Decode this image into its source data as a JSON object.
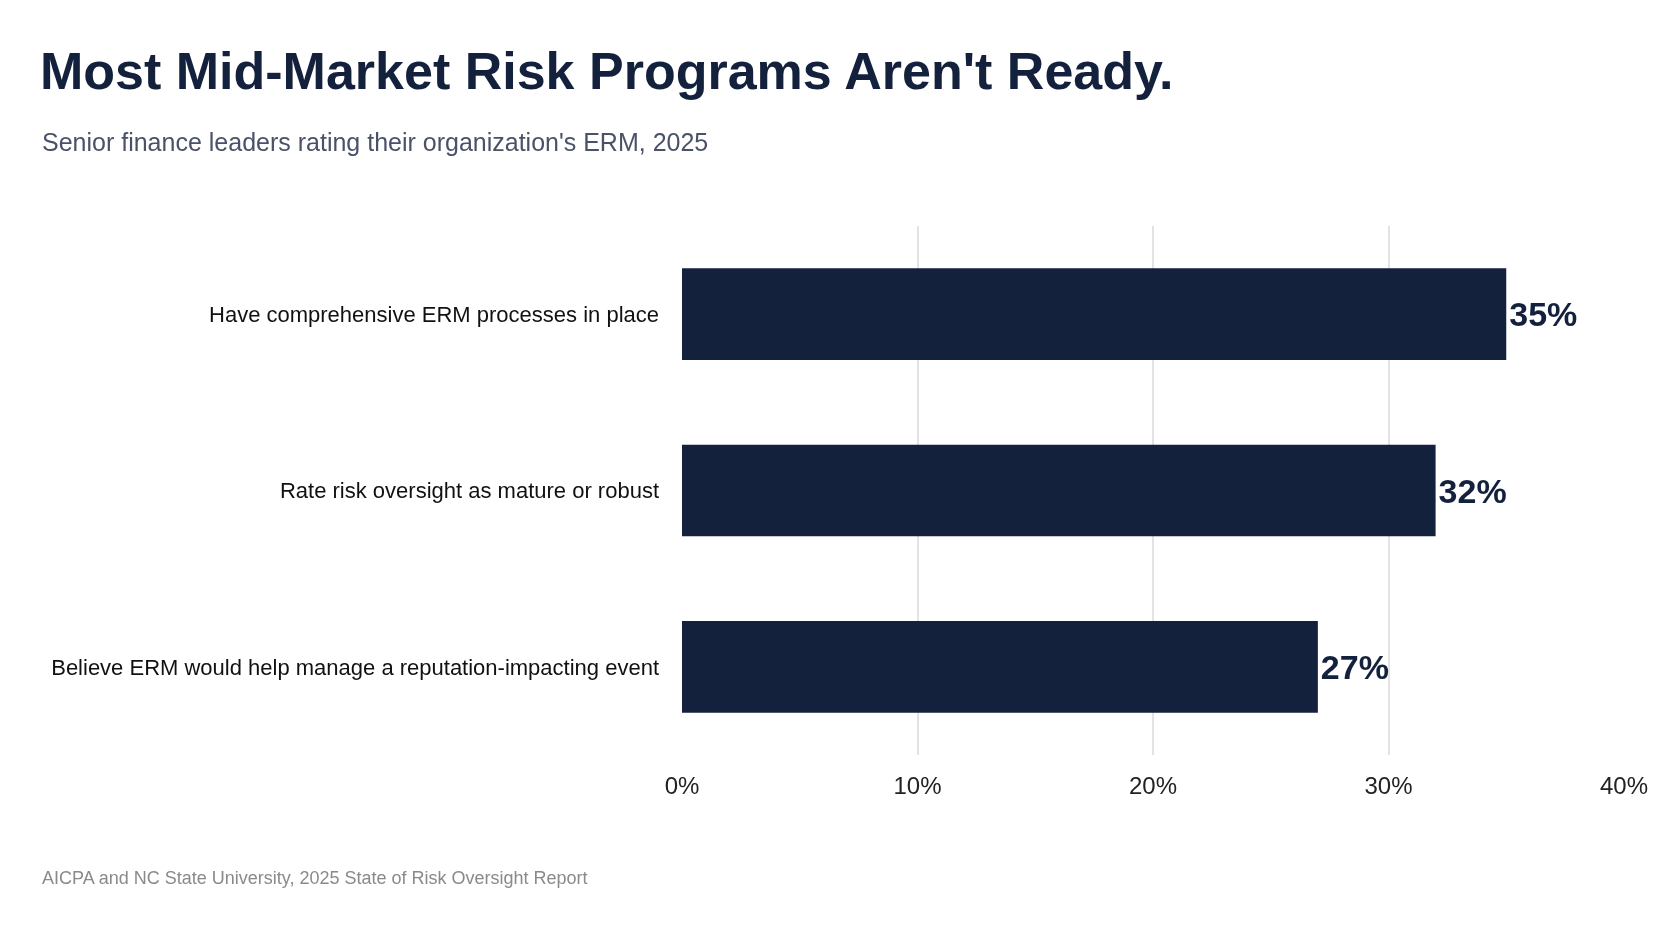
{
  "chart_data": {
    "type": "bar",
    "orientation": "horizontal",
    "title": "Most Mid-Market Risk Programs Aren't Ready.",
    "subtitle": "Senior finance leaders rating their organization's ERM, 2025",
    "annotations": [
      "AICPA and NC State University, 2025 State of Risk Oversight Report"
    ],
    "categories": [
      "Have comprehensive ERM processes in place",
      "Rate risk oversight as mature or robust",
      "Believe ERM would help manage a reputation-impacting event"
    ],
    "values": [
      35,
      32,
      27
    ],
    "value_labels": [
      "35%",
      "32%",
      "27%"
    ],
    "color": "#14213d",
    "xlim": [
      0,
      40
    ],
    "xticks": [
      {
        "value": 0,
        "label": "0%"
      },
      {
        "value": 10,
        "label": "10%"
      },
      {
        "value": 20,
        "label": "20%"
      },
      {
        "value": 30,
        "label": "30%"
      },
      {
        "value": 40,
        "label": "40%"
      }
    ],
    "grid": "x"
  }
}
